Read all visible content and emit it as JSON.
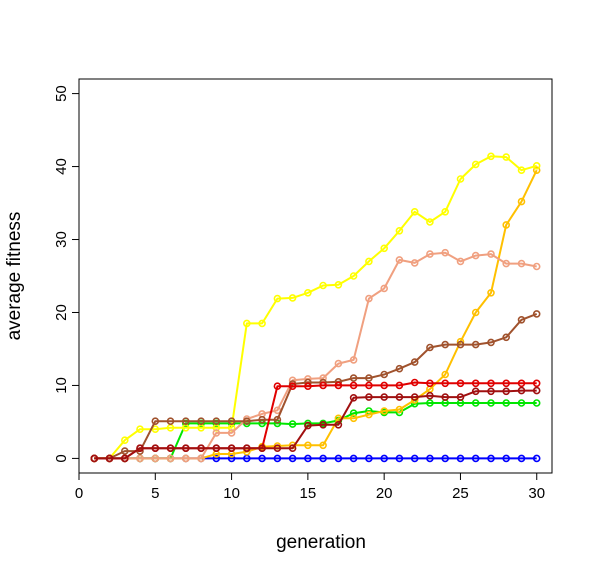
{
  "chart_data": {
    "type": "line",
    "title": "",
    "xlabel": "generation",
    "ylabel": "average fitness",
    "xlim": [
      0,
      31
    ],
    "ylim": [
      -2,
      52
    ],
    "xticks": [
      0,
      5,
      10,
      15,
      20,
      25,
      30
    ],
    "yticks": [
      0,
      10,
      20,
      30,
      40,
      50
    ],
    "grid": false,
    "x": [
      1,
      2,
      3,
      4,
      5,
      6,
      7,
      8,
      9,
      10,
      11,
      12,
      13,
      14,
      15,
      16,
      17,
      18,
      19,
      20,
      21,
      22,
      23,
      24,
      25,
      26,
      27,
      28,
      29,
      30
    ],
    "series": [
      {
        "color": "#0000FF",
        "values": [
          0,
          0,
          0,
          0,
          0,
          0,
          0,
          0,
          0,
          0,
          0,
          0,
          0,
          0,
          0,
          0,
          0,
          0,
          0,
          0,
          0,
          0,
          0,
          0,
          0,
          0,
          0,
          0,
          0,
          0
        ]
      },
      {
        "color": "#00E600",
        "values": [
          0,
          0,
          0,
          0,
          0,
          0,
          4.8,
          4.8,
          4.8,
          4.8,
          4.8,
          4.8,
          4.8,
          4.7,
          4.8,
          4.8,
          5.2,
          6.2,
          6.5,
          6.3,
          6.3,
          7.5,
          7.6,
          7.6,
          7.6,
          7.6,
          7.6,
          7.6,
          7.6,
          7.6
        ]
      },
      {
        "color": "#FFC000",
        "values": [
          0,
          0,
          0,
          0,
          0,
          0,
          0,
          0,
          0.6,
          0.6,
          0.9,
          1.6,
          1.7,
          1.8,
          1.8,
          1.8,
          5.5,
          5.5,
          6,
          6.5,
          6.7,
          8,
          9.5,
          11.5,
          16,
          20,
          22.7,
          32,
          35.2,
          39.5
        ]
      },
      {
        "color": "#FFFF00",
        "values": [
          0,
          0,
          2.5,
          4,
          4,
          4.2,
          4.2,
          4.2,
          4.2,
          4.2,
          18.5,
          18.5,
          21.9,
          22,
          22.7,
          23.7,
          23.8,
          25,
          27,
          28.8,
          31.2,
          33.8,
          32.4,
          33.8,
          38.3,
          40.3,
          41.4,
          41.3,
          39.5,
          40.1
        ]
      },
      {
        "color": "#F0A080",
        "values": [
          0,
          0,
          0,
          0,
          0,
          0,
          0,
          0,
          3.5,
          3.5,
          5.4,
          6.1,
          6.6,
          10.7,
          10.9,
          11,
          13,
          13.5,
          21.9,
          23.3,
          27.2,
          26.8,
          28,
          28.2,
          27,
          27.8,
          28,
          26.7,
          26.7,
          26.3
        ]
      },
      {
        "color": "#A0522D",
        "values": [
          0,
          0,
          1,
          1,
          5.1,
          5.1,
          5.1,
          5.1,
          5.1,
          5.1,
          5.1,
          5.3,
          5.3,
          10.2,
          10.4,
          10.4,
          10.5,
          11,
          11,
          11.5,
          12.3,
          13.2,
          15.2,
          15.6,
          15.6,
          15.6,
          15.9,
          16.6,
          19,
          19.8
        ]
      },
      {
        "color": "#E00000",
        "values": [
          0,
          0,
          0,
          1.4,
          1.4,
          1.4,
          1.4,
          1.4,
          1.4,
          1.4,
          1.4,
          1.4,
          9.9,
          9.9,
          9.9,
          10,
          10,
          10,
          10,
          10,
          10,
          10.4,
          10.3,
          10.3,
          10.3,
          10.3,
          10.3,
          10.3,
          10.3,
          10.3
        ]
      },
      {
        "color": "#A01010",
        "values": [
          0,
          0,
          0,
          1.4,
          1.4,
          1.4,
          1.4,
          1.4,
          1.4,
          1.4,
          1.4,
          1.4,
          1.4,
          1.4,
          4.5,
          4.6,
          4.6,
          8.3,
          8.4,
          8.4,
          8.4,
          8.4,
          8.6,
          8.4,
          8.4,
          9.2,
          9.2,
          9.2,
          9.3,
          9.3
        ]
      }
    ]
  }
}
